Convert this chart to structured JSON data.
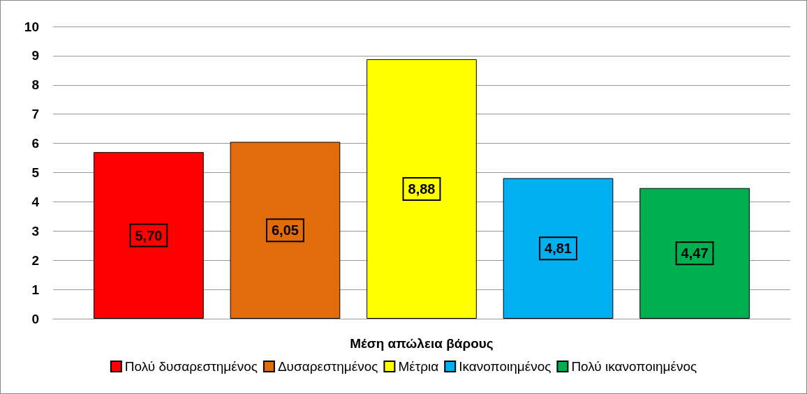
{
  "chart_data": {
    "type": "bar",
    "categories": [
      "Μέση απώλεια βάρους"
    ],
    "series": [
      {
        "name": "Πολύ δυσαρεστημένος",
        "color": "#ff0000",
        "values": [
          5.7
        ],
        "value_labels": [
          "5,70"
        ]
      },
      {
        "name": "Δυσαρεστημένος",
        "color": "#e36c0a",
        "values": [
          6.05
        ],
        "value_labels": [
          "6,05"
        ]
      },
      {
        "name": "Μέτρια",
        "color": "#ffff00",
        "values": [
          8.88
        ],
        "value_labels": [
          "8,88"
        ]
      },
      {
        "name": "Ικανοποιημένος",
        "color": "#00b0f0",
        "values": [
          4.81
        ],
        "value_labels": [
          "4,81"
        ]
      },
      {
        "name": "Πολύ ικανοποιημένος",
        "color": "#00b050",
        "values": [
          4.47
        ],
        "value_labels": [
          "4,47"
        ]
      }
    ],
    "ylim": [
      0,
      10
    ],
    "yticks": [
      0,
      1,
      2,
      3,
      4,
      5,
      6,
      7,
      8,
      9,
      10
    ],
    "grid": "y",
    "legend": "bottom"
  }
}
